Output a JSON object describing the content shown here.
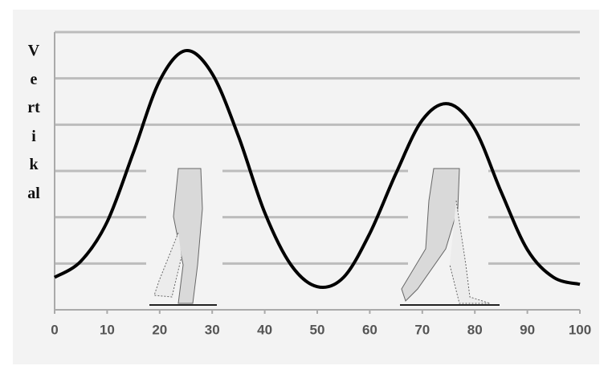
{
  "chart_data": {
    "type": "line",
    "y_label": "Vertikal",
    "x": [
      0,
      5,
      10,
      15,
      20,
      25,
      30,
      35,
      40,
      45,
      50,
      55,
      60,
      65,
      70,
      75,
      80,
      85,
      90,
      95,
      100
    ],
    "series": [
      {
        "color": "#000000",
        "values": [
          0.7,
          1.05,
          1.9,
          3.4,
          4.95,
          5.6,
          5.1,
          3.75,
          2.1,
          0.97,
          0.5,
          0.7,
          1.65,
          2.95,
          4.1,
          4.45,
          3.9,
          2.55,
          1.3,
          0.7,
          0.55
        ]
      }
    ],
    "xlim": [
      0,
      100
    ],
    "xticks": [
      0,
      10,
      20,
      30,
      40,
      50,
      60,
      70,
      80,
      90,
      100
    ],
    "ylim": [
      0,
      6
    ],
    "yticks": [
      1,
      2,
      3,
      4,
      5,
      6
    ],
    "grid": true
  }
}
